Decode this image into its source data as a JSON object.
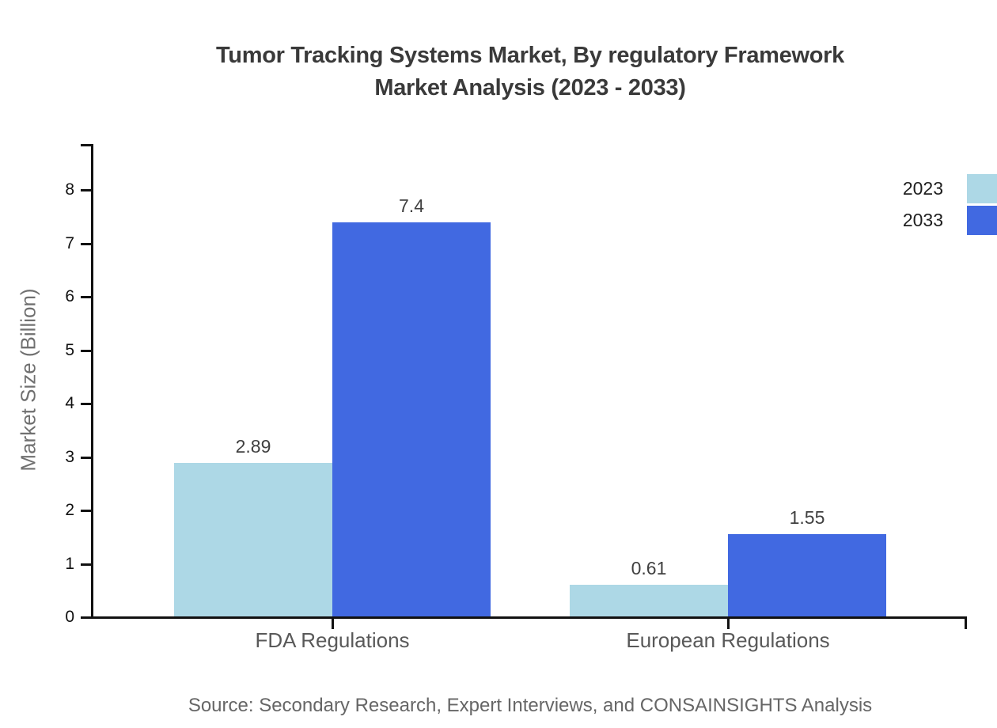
{
  "title": {
    "line1": "Tumor Tracking Systems Market, By regulatory Framework",
    "line2": "Market Analysis (2023 - 2033)"
  },
  "source": "Source: Secondary Research, Expert Interviews, and CONSAINSIGHTS Analysis",
  "chart_data": {
    "type": "bar",
    "title": "Tumor Tracking Systems Market, By regulatory Framework Market Analysis (2023 - 2033)",
    "categories": [
      "FDA Regulations",
      "European Regulations"
    ],
    "series": [
      {
        "name": "2023",
        "color": "#ADD8E6",
        "values": [
          2.89,
          0.61
        ]
      },
      {
        "name": "2033",
        "color": "#4169E1",
        "values": [
          7.4,
          1.55
        ]
      }
    ],
    "xlabel": "",
    "ylabel": "Market Size (Billion)",
    "yticks": [
      0,
      1,
      2,
      3,
      4,
      5,
      6,
      7,
      8
    ],
    "ylim": [
      0,
      8.86
    ],
    "grid": false,
    "legend_position": "top-right",
    "value_labels": true
  }
}
